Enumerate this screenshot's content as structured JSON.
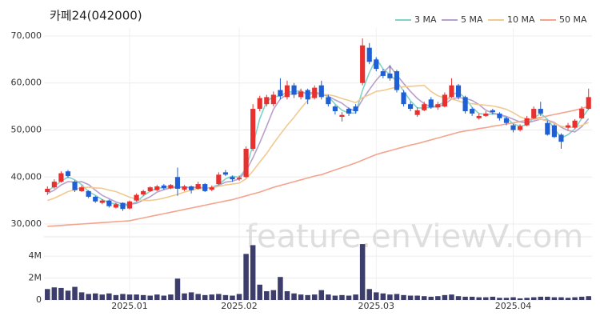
{
  "chart_data": {
    "type": "candlestick",
    "title": "카페24(042000)",
    "watermark": "feature.enViewV.com",
    "categories": [
      null,
      null,
      null,
      null,
      null,
      null,
      null,
      null,
      null,
      null,
      null,
      null,
      "2025.01",
      null,
      null,
      null,
      null,
      null,
      null,
      null,
      null,
      null,
      null,
      null,
      null,
      null,
      null,
      null,
      "2025.02",
      null,
      null,
      null,
      null,
      null,
      null,
      null,
      null,
      null,
      null,
      null,
      null,
      null,
      null,
      null,
      null,
      null,
      null,
      null,
      "2025.03",
      null,
      null,
      null,
      null,
      null,
      null,
      null,
      null,
      null,
      null,
      null,
      null,
      null,
      null,
      null,
      null,
      null,
      null,
      null,
      "2025.04",
      null,
      null,
      null,
      null,
      null,
      null,
      null,
      null,
      null,
      null,
      null
    ],
    "open": [
      36800,
      37800,
      39000,
      41200,
      39000,
      37000,
      37000,
      35800,
      34500,
      35000,
      33500,
      34500,
      33300,
      35000,
      36300,
      37000,
      37200,
      38200,
      37600,
      40000,
      37300,
      38000,
      37500,
      38500,
      37300,
      38500,
      41000,
      40000,
      39500,
      40000,
      46000,
      54500,
      55500,
      55500,
      58500,
      57000,
      59500,
      57000,
      58500,
      56800,
      59500,
      57000,
      55000,
      52800,
      54500,
      55000,
      60000,
      67500,
      65000,
      62500,
      62000,
      62500,
      58000,
      55500,
      53200,
      54200,
      56500,
      54800,
      55000,
      57000,
      59500,
      57000,
      54500,
      52500,
      53000,
      54200,
      53500,
      52500,
      51000,
      50000,
      51000,
      52500,
      54500,
      51500,
      51000,
      49000,
      50500,
      50500,
      52500,
      54500
    ],
    "high": [
      38000,
      39500,
      41200,
      41500,
      39300,
      38200,
      37200,
      36000,
      35300,
      35200,
      34500,
      34600,
      35000,
      36500,
      37300,
      38000,
      38300,
      38500,
      38500,
      42000,
      38300,
      38200,
      39000,
      38700,
      38200,
      41000,
      41500,
      40300,
      40300,
      46500,
      55500,
      57300,
      57500,
      58200,
      61000,
      60500,
      60000,
      58800,
      58800,
      59500,
      60500,
      57500,
      55300,
      53800,
      54800,
      55500,
      69500,
      68500,
      65500,
      63000,
      63800,
      62800,
      58500,
      56000,
      54800,
      56000,
      57000,
      56000,
      58000,
      61000,
      59800,
      57300,
      54800,
      53500,
      54000,
      54500,
      53800,
      52800,
      51300,
      51200,
      53000,
      55000,
      56000,
      52000,
      51300,
      49300,
      51500,
      52300,
      55000,
      58800
    ],
    "low": [
      36200,
      37500,
      38800,
      39800,
      36800,
      36800,
      35500,
      34500,
      34200,
      33500,
      33300,
      32800,
      33100,
      34800,
      36000,
      36800,
      37000,
      37300,
      37400,
      36000,
      37000,
      36500,
      37300,
      36800,
      37000,
      38300,
      40200,
      39000,
      39200,
      39800,
      45500,
      54000,
      55000,
      55000,
      56500,
      56500,
      56800,
      56500,
      55500,
      56500,
      56500,
      55000,
      53300,
      51800,
      53000,
      53500,
      59500,
      64000,
      62500,
      61000,
      60500,
      58000,
      55000,
      54000,
      52800,
      54000,
      54500,
      54300,
      54800,
      56800,
      56500,
      53500,
      53000,
      52200,
      52800,
      53300,
      52000,
      51000,
      49500,
      49700,
      50800,
      52300,
      53000,
      48800,
      48300,
      46000,
      50000,
      50300,
      52300,
      54300
    ],
    "close": [
      37500,
      39000,
      40800,
      40200,
      37200,
      37800,
      35800,
      34800,
      35000,
      33800,
      34200,
      33200,
      34800,
      36200,
      37000,
      37800,
      38000,
      37600,
      38300,
      37500,
      38000,
      37200,
      38500,
      37000,
      37800,
      40500,
      40500,
      39500,
      39800,
      46000,
      54500,
      56800,
      57000,
      57500,
      57200,
      59500,
      57500,
      58200,
      56500,
      59000,
      57000,
      55500,
      54000,
      53200,
      53500,
      54000,
      68000,
      64500,
      63000,
      61500,
      61000,
      58500,
      55500,
      54500,
      54200,
      55500,
      54800,
      55500,
      57500,
      59500,
      57000,
      54000,
      53500,
      53000,
      53500,
      53800,
      52500,
      51500,
      50000,
      50800,
      52500,
      54500,
      53500,
      49000,
      48500,
      47500,
      51000,
      52000,
      54500,
      57000
    ],
    "up_color": "#e8302f",
    "down_color": "#1e5fd6",
    "ylim": [
      28300,
      71700
    ],
    "yticks": [
      {
        "value": 30000,
        "label": "30,000"
      },
      {
        "value": 40000,
        "label": "40,000"
      },
      {
        "value": 50000,
        "label": "50,000"
      },
      {
        "value": 60000,
        "label": "60,000"
      },
      {
        "value": 70000,
        "label": "70,000"
      }
    ],
    "grid": true,
    "legend": "top-right",
    "series": [
      {
        "name": "3 MA",
        "color": "#7fd3c9",
        "values": [
          37000,
          38000,
          39100,
          40000,
          39400,
          38400,
          36900,
          36100,
          35200,
          34500,
          34300,
          33700,
          34100,
          34700,
          36000,
          37000,
          37600,
          37800,
          38000,
          37800,
          37900,
          37600,
          37900,
          37600,
          37800,
          38400,
          39600,
          40200,
          39900,
          41800,
          46800,
          52400,
          56100,
          57100,
          57200,
          58100,
          58100,
          58400,
          57400,
          57900,
          57500,
          57200,
          55500,
          54200,
          53600,
          53600,
          58500,
          62200,
          65200,
          63000,
          61800,
          60300,
          58300,
          56200,
          54700,
          54700,
          54800,
          55300,
          55900,
          57500,
          58000,
          56800,
          54800,
          53500,
          53300,
          53400,
          53300,
          52600,
          51300,
          50800,
          51100,
          52600,
          53500,
          52300,
          50300,
          48300,
          49000,
          50200,
          52500,
          54500
        ]
      },
      {
        "name": "5 MA",
        "color": "#b7a0cc",
        "values": [
          36500,
          37200,
          38300,
          39000,
          38900,
          39000,
          38400,
          37200,
          36100,
          35400,
          34700,
          34200,
          34200,
          34400,
          35100,
          35800,
          36800,
          37300,
          37700,
          37800,
          37900,
          37700,
          37900,
          37600,
          37700,
          38200,
          38900,
          39100,
          39600,
          41300,
          44100,
          47300,
          50800,
          54400,
          56600,
          57600,
          57700,
          58000,
          57800,
          58100,
          57600,
          57200,
          56400,
          55700,
          54600,
          54000,
          56500,
          58600,
          60600,
          62200,
          63600,
          61700,
          59900,
          58200,
          56700,
          55600,
          54900,
          54900,
          55500,
          56600,
          56900,
          56700,
          56300,
          55400,
          54200,
          53600,
          53300,
          52900,
          52300,
          51700,
          51500,
          51900,
          52300,
          52100,
          51600,
          50600,
          49900,
          49600,
          50700,
          52400
        ]
      },
      {
        "name": "10 MA",
        "color": "#f2c98f",
        "values": [
          35000,
          35500,
          36200,
          36900,
          37300,
          37800,
          37800,
          37700,
          37600,
          37200,
          36900,
          36300,
          35700,
          35300,
          35000,
          35000,
          35200,
          35500,
          35900,
          36300,
          36800,
          37200,
          37500,
          37600,
          37700,
          38000,
          38300,
          38500,
          38700,
          39600,
          41300,
          43200,
          45000,
          47100,
          49100,
          51000,
          52700,
          54600,
          56300,
          57600,
          57600,
          57500,
          57200,
          56700,
          56300,
          55800,
          56900,
          57500,
          58200,
          58400,
          58800,
          59100,
          59200,
          59300,
          59400,
          59500,
          58200,
          57300,
          56800,
          56600,
          56200,
          55700,
          55600,
          55400,
          55300,
          55100,
          54800,
          54400,
          53700,
          52800,
          52300,
          52300,
          52300,
          51900,
          51400,
          50800,
          50600,
          50600,
          51000,
          51600
        ]
      },
      {
        "name": "50 MA",
        "color": "#f4a48c",
        "values": [
          29500,
          29600,
          29700,
          29800,
          29900,
          30000,
          30100,
          30200,
          30300,
          30400,
          30500,
          30600,
          30700,
          31000,
          31300,
          31600,
          31900,
          32200,
          32500,
          32800,
          33100,
          33400,
          33700,
          34000,
          34300,
          34600,
          34900,
          35200,
          35600,
          36000,
          36400,
          36800,
          37300,
          37800,
          38200,
          38600,
          39000,
          39400,
          39800,
          40200,
          40500,
          41000,
          41500,
          42000,
          42500,
          43000,
          43600,
          44200,
          44800,
          45200,
          45600,
          46000,
          46400,
          46800,
          47100,
          47500,
          47900,
          48300,
          48700,
          49100,
          49500,
          49800,
          50000,
          50300,
          50500,
          50800,
          51000,
          51300,
          51500,
          51800,
          52100,
          52400,
          52700,
          53000,
          53300,
          53600,
          53900,
          54200,
          54600,
          55000
        ]
      }
    ],
    "volume": {
      "color": "#3d3d6b",
      "ylim": [
        0,
        6200000
      ],
      "yticks": [
        0,
        {
          "value": 2000000,
          "label": "2M"
        },
        {
          "value": 4000000,
          "label": "4M"
        }
      ],
      "values": [
        1000000,
        1150000,
        1100000,
        850000,
        1200000,
        700000,
        550000,
        600000,
        500000,
        600000,
        450000,
        550000,
        500000,
        500000,
        450000,
        400000,
        500000,
        400000,
        500000,
        1950000,
        600000,
        700000,
        550000,
        450000,
        500000,
        550000,
        450000,
        400000,
        550000,
        4200000,
        5000000,
        1400000,
        800000,
        900000,
        2100000,
        800000,
        600000,
        500000,
        450000,
        500000,
        900000,
        500000,
        400000,
        450000,
        400000,
        500000,
        5100000,
        1000000,
        700000,
        600000,
        500000,
        550000,
        450000,
        400000,
        400000,
        350000,
        300000,
        350000,
        450000,
        500000,
        350000,
        300000,
        300000,
        250000,
        250000,
        300000,
        200000,
        200000,
        250000,
        150000,
        200000,
        250000,
        300000,
        300000,
        250000,
        250000,
        200000,
        250000,
        300000,
        350000
      ]
    }
  }
}
